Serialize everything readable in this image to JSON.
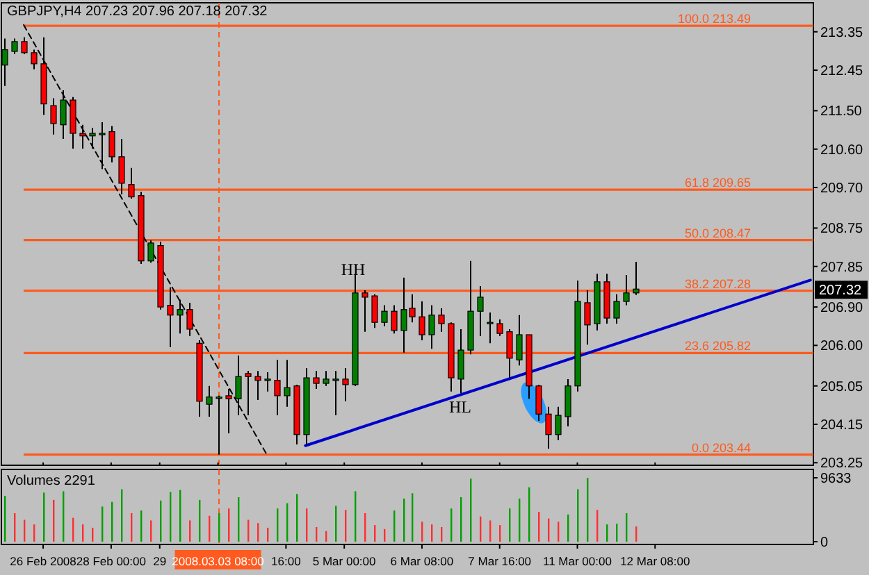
{
  "chart_data": [
    {
      "type": "candlestick",
      "title": "GBPJPY,H4 207.23 207.96 207.18 207.32",
      "categories": [
        null,
        null,
        null,
        null,
        "26 Feb 2008",
        null,
        null,
        null,
        null,
        null,
        null,
        "28 Feb 00:00",
        null,
        null,
        null,
        null,
        "29",
        null,
        null,
        null,
        null,
        null,
        "2008.03.03 08:00",
        null,
        null,
        null,
        null,
        null,
        null,
        "16:00",
        null,
        null,
        null,
        null,
        null,
        "5 Mar 00:00",
        null,
        null,
        null,
        null,
        null,
        null,
        null,
        "6 Mar 08:00",
        null,
        null,
        null,
        null,
        null,
        null,
        null,
        "7 Mar 16:00",
        null,
        null,
        null,
        null,
        null,
        null,
        null,
        "11 Mar 00:00",
        null,
        null,
        null,
        null,
        null,
        null,
        null,
        "12 Mar 08:00",
        null,
        null,
        null,
        null,
        null,
        null,
        null,
        null,
        null,
        null,
        null,
        null,
        null,
        null,
        null,
        null
      ],
      "ohlc": [
        [
          212.57,
          213.19,
          212.08,
          212.93
        ],
        [
          212.89,
          213.19,
          212.83,
          213.12
        ],
        [
          213.12,
          213.22,
          212.83,
          212.86
        ],
        [
          212.86,
          212.93,
          212.47,
          212.6
        ],
        [
          212.6,
          213.22,
          211.4,
          211.66
        ],
        [
          211.62,
          211.79,
          210.94,
          211.2
        ],
        [
          211.17,
          211.98,
          210.84,
          211.75
        ],
        [
          211.75,
          211.82,
          210.61,
          210.97
        ],
        [
          210.97,
          211.17,
          210.61,
          210.91
        ],
        [
          210.91,
          211.1,
          210.61,
          210.97
        ],
        [
          210.97,
          211.23,
          210.13,
          210.97
        ],
        [
          211.01,
          211.14,
          210.29,
          210.42
        ],
        [
          210.42,
          210.84,
          209.54,
          209.8
        ],
        [
          209.77,
          210.16,
          209.44,
          209.48
        ],
        [
          209.51,
          209.6,
          207.91,
          207.98
        ],
        [
          207.98,
          208.46,
          207.94,
          208.4
        ],
        [
          208.34,
          208.43,
          206.84,
          206.9
        ],
        [
          206.94,
          207.36,
          205.96,
          206.71
        ],
        [
          206.71,
          207.07,
          206.28,
          206.84
        ],
        [
          206.84,
          207,
          206.22,
          206.38
        ],
        [
          206.05,
          206.12,
          204.33,
          204.69
        ],
        [
          204.62,
          205.05,
          204.33,
          204.79
        ],
        [
          204.79,
          204.82,
          203.44,
          204.79
        ],
        [
          204.82,
          204.98,
          203.94,
          204.75
        ],
        [
          204.75,
          205.76,
          204.36,
          205.27
        ],
        [
          205.34,
          205.4,
          204.36,
          205.27
        ],
        [
          205.27,
          205.4,
          204.72,
          205.18
        ],
        [
          205.21,
          205.37,
          204.92,
          205.21
        ],
        [
          205.18,
          205.66,
          204.36,
          204.82
        ],
        [
          204.82,
          205.66,
          204.56,
          205.01
        ],
        [
          205.05,
          205.08,
          203.68,
          203.91
        ],
        [
          203.91,
          205.47,
          203.68,
          205.24
        ],
        [
          205.24,
          205.4,
          204.98,
          205.11
        ],
        [
          205.11,
          205.4,
          205.05,
          205.21
        ],
        [
          205.21,
          205.4,
          204.36,
          205.21
        ],
        [
          205.21,
          205.47,
          204.69,
          205.08
        ],
        [
          205.08,
          207.68,
          205.05,
          207.23
        ],
        [
          207.23,
          207.29,
          206.32,
          207.13
        ],
        [
          207.16,
          207.2,
          206.41,
          206.54
        ],
        [
          206.54,
          206.94,
          206.45,
          206.8
        ],
        [
          206.8,
          206.94,
          206.28,
          206.35
        ],
        [
          206.35,
          207.59,
          205.83,
          206.84
        ],
        [
          206.87,
          207.2,
          206.54,
          206.67
        ],
        [
          206.67,
          207.03,
          206.12,
          206.25
        ],
        [
          206.25,
          206.94,
          205.92,
          206.71
        ],
        [
          206.71,
          206.87,
          206.32,
          206.51
        ],
        [
          206.51,
          206.54,
          204.92,
          205.24
        ],
        [
          205.21,
          206.38,
          204.88,
          205.89
        ],
        [
          205.89,
          207.98,
          205.79,
          206.8
        ],
        [
          206.8,
          207.39,
          206.22,
          207.13
        ],
        [
          206.54,
          206.77,
          206.05,
          206.54
        ],
        [
          206.51,
          206.61,
          206.22,
          206.28
        ],
        [
          206.32,
          206.38,
          205.24,
          205.7
        ],
        [
          205.66,
          206.71,
          205.53,
          206.25
        ],
        [
          206.25,
          206.25,
          204.75,
          205.05
        ],
        [
          205.05,
          205.08,
          204.23,
          204.39
        ],
        [
          204.39,
          204.56,
          203.58,
          203.91
        ],
        [
          203.91,
          204.56,
          203.78,
          204.36
        ],
        [
          204.33,
          205.21,
          204.1,
          205.05
        ],
        [
          205.05,
          207.52,
          204.92,
          207.03
        ],
        [
          207,
          207.29,
          206.02,
          206.48
        ],
        [
          206.51,
          207.68,
          206.35,
          207.49
        ],
        [
          207.49,
          207.68,
          206.51,
          206.64
        ],
        [
          206.64,
          207.2,
          206.51,
          207.03
        ],
        [
          207.03,
          207.65,
          206.94,
          207.23
        ],
        [
          207.23,
          207.96,
          207.18,
          207.32
        ],
        null,
        null,
        null,
        null,
        null,
        null,
        null,
        null,
        null,
        null,
        null,
        null,
        null,
        null,
        null,
        null,
        null,
        null
      ],
      "series": [
        {
          "type": "line",
          "color": "#000000",
          "line_style": "dashed",
          "values": [
            null,
            null,
            213.51,
            null,
            null,
            null,
            null,
            null,
            null,
            null,
            null,
            null,
            null,
            null,
            null,
            null,
            null,
            null,
            null,
            null,
            null,
            null,
            null,
            null,
            null,
            null,
            null,
            203.45,
            null,
            null,
            null,
            null,
            null,
            null,
            null,
            null,
            null,
            null,
            null,
            null,
            null,
            null,
            null,
            null,
            null,
            null,
            null,
            null,
            null,
            null,
            null,
            null,
            null,
            null,
            null,
            null,
            null,
            null,
            null,
            null,
            null,
            null,
            null,
            null,
            null,
            null,
            null,
            null,
            null,
            null,
            null,
            null,
            null,
            null,
            null,
            null,
            null,
            null,
            null,
            null,
            null,
            null,
            null,
            null
          ]
        },
        {
          "type": "line",
          "color": "#0000cc",
          "line_style": "solid",
          "values": [
            null,
            null,
            null,
            null,
            null,
            null,
            null,
            null,
            null,
            null,
            null,
            null,
            null,
            null,
            null,
            null,
            null,
            null,
            null,
            null,
            null,
            null,
            null,
            null,
            null,
            null,
            null,
            null,
            null,
            null,
            null,
            203.65,
            null,
            null,
            null,
            null,
            null,
            null,
            null,
            null,
            null,
            null,
            null,
            null,
            null,
            null,
            null,
            null,
            null,
            null,
            null,
            null,
            null,
            null,
            null,
            null,
            null,
            null,
            null,
            null,
            null,
            null,
            null,
            null,
            null,
            null,
            null,
            null,
            null,
            null,
            null,
            null,
            null,
            null,
            null,
            null,
            null,
            null,
            null,
            null,
            null,
            null,
            null,
            207.53
          ]
        }
      ],
      "ylim": [
        203.19,
        214.03
      ],
      "yticks": [
        213.35,
        212.45,
        {
          "value": 211.5,
          "label": "211.50"
        },
        {
          "value": 210.6,
          "label": "210.60"
        },
        {
          "value": 209.7,
          "label": "209.70"
        },
        208.75,
        207.85,
        {
          "value": 206.9,
          "label": "206.90"
        },
        {
          "value": 206,
          "label": "206.00"
        },
        205.05,
        204.15,
        203.25
      ],
      "tick_labels": "y",
      "ref_lines": [
        {
          "axis": "y",
          "value": 213.49,
          "label": "100.0 213.49",
          "color": "#ff5a1f"
        },
        {
          "axis": "y",
          "value": 209.65,
          "label": "61.8 209.65",
          "color": "#ff5a1f"
        },
        {
          "axis": "y",
          "value": 208.47,
          "label": "50.0 208.47",
          "color": "#ff5a1f"
        },
        {
          "axis": "y",
          "value": 207.28,
          "label": "38.2 207.28",
          "color": "#ff5a1f"
        },
        {
          "axis": "y",
          "value": 205.82,
          "label": "23.6 205.82",
          "color": "#ff5a1f"
        },
        {
          "axis": "y",
          "value": 203.44,
          "label": "0.0 203.44",
          "color": "#ff5a1f"
        },
        {
          "axis": "x",
          "value": "2008.03.03 08:00",
          "color": "#ff5a1f",
          "line_style": "dashed"
        }
      ],
      "annotations": [
        "HH",
        "HL",
        {
          "text": "207.32",
          "y": 207.32
        }
      ]
    },
    {
      "type": "bar",
      "title": "Volumes 2291",
      "categories": [
        null,
        null,
        null,
        null,
        "26 Feb 2008",
        null,
        null,
        null,
        null,
        null,
        null,
        "28 Feb 00:00",
        null,
        null,
        null,
        null,
        "29",
        null,
        null,
        null,
        null,
        null,
        "2008.03.03 08:00",
        null,
        null,
        null,
        null,
        null,
        null,
        "16:00",
        null,
        null,
        null,
        null,
        null,
        "5 Mar 00:00",
        null,
        null,
        null,
        null,
        null,
        null,
        null,
        "6 Mar 08:00",
        null,
        null,
        null,
        null,
        null,
        null,
        null,
        "7 Mar 16:00",
        null,
        null,
        null,
        null,
        null,
        null,
        null,
        "11 Mar 00:00",
        null,
        null,
        null,
        null,
        null,
        null,
        null,
        "12 Mar 08:00",
        null,
        null,
        null,
        null,
        null,
        null,
        null,
        null,
        null,
        null,
        null,
        null,
        null,
        null,
        null,
        null
      ],
      "values": [
        6900,
        4300,
        3300,
        2600,
        7400,
        6300,
        7600,
        3600,
        2600,
        2100,
        5300,
        6000,
        7900,
        4300,
        4700,
        3200,
        6200,
        7500,
        7800,
        3200,
        6300,
        3900,
        4300,
        5000,
        6700,
        3300,
        2800,
        2100,
        5000,
        5800,
        7200,
        5000,
        2200,
        1600,
        5400,
        4800,
        7600,
        4300,
        2500,
        1900,
        4700,
        6500,
        7300,
        3000,
        2600,
        2200,
        5000,
        6700,
        9500,
        3800,
        3200,
        2500,
        5000,
        6500,
        8200,
        4500,
        3500,
        3000,
        4100,
        7900,
        9633,
        4800,
        2600,
        2700,
        4300,
        2291,
        null,
        null,
        null,
        null,
        null,
        null,
        null,
        null,
        null,
        null,
        null,
        null,
        null,
        null,
        null,
        null,
        null,
        null
      ],
      "colors": [
        "#00a000",
        "#ff3030",
        "#ff3030",
        "#ff3030",
        "#00a000",
        "#ff3030",
        "#00a000",
        "#ff3030",
        "#ff3030",
        "#ff3030",
        "#00a000",
        "#00a000",
        "#00a000",
        "#ff3030",
        "#00a000",
        "#ff3030",
        "#00a000",
        "#00a000",
        "#00a000",
        "#ff3030",
        "#00a000",
        "#ff3030",
        "#00a000",
        "#ff3030",
        "#00a000",
        "#ff3030",
        "#ff3030",
        "#ff3030",
        "#00a000",
        "#00a000",
        "#00a000",
        "#ff3030",
        "#ff3030",
        "#ff3030",
        "#00a000",
        "#ff3030",
        "#00a000",
        "#ff3030",
        "#ff3030",
        "#ff3030",
        "#00a000",
        "#00a000",
        "#00a000",
        "#ff3030",
        "#ff3030",
        "#ff3030",
        "#00a000",
        "#00a000",
        "#00a000",
        "#ff3030",
        "#ff3030",
        "#ff3030",
        "#00a000",
        "#00a000",
        "#00a000",
        "#ff3030",
        "#ff3030",
        "#ff3030",
        "#00a000",
        "#00a000",
        "#00a000",
        "#ff3030",
        "#00a000",
        "#00a000",
        "#00a000",
        "#ff3030",
        null,
        null,
        null,
        null,
        null,
        null,
        null,
        null,
        null,
        null,
        null,
        null,
        null,
        null,
        null,
        null,
        null,
        null
      ],
      "ylim": [
        0,
        9633
      ],
      "yticks": [
        0,
        9633
      ],
      "ref_lines": [
        {
          "axis": "x",
          "value": "2008.03.03 08:00",
          "color": "#ff5a1f",
          "line_style": "dashed"
        }
      ]
    }
  ]
}
